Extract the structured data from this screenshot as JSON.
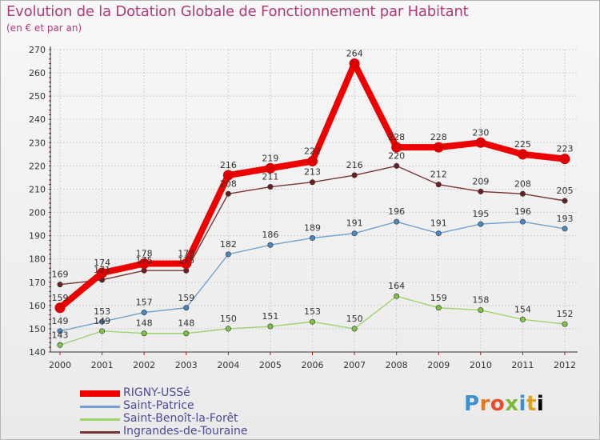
{
  "header": {
    "title": "Evolution de la Dotation Globale de Fonctionnement par Habitant",
    "subtitle": "(en € et par an)"
  },
  "logo": {
    "text": "Proxiti"
  },
  "colors": {
    "grid": "#cfcfcf",
    "axis": "#333333",
    "tick_marks": "#d01010",
    "label_text": "#333333",
    "title_text": "#b03a7a",
    "legend_text": "#4a4aa0"
  },
  "chart_data": {
    "type": "line",
    "title": "Evolution de la Dotation Globale de Fonctionnement par Habitant",
    "subtitle": "(en € et par an)",
    "xlabel": "",
    "ylabel": "",
    "ylim": [
      140,
      270
    ],
    "yticks": [
      140,
      150,
      160,
      170,
      180,
      190,
      200,
      210,
      220,
      230,
      240,
      250,
      260,
      270
    ],
    "grid": true,
    "legend_position": "bottom-left",
    "categories": [
      "2000",
      "2001",
      "2002",
      "2003",
      "2004",
      "2005",
      "2006",
      "2007",
      "2008",
      "2009",
      "2010",
      "2011",
      "2012"
    ],
    "series": [
      {
        "name": "RIGNY-USSé",
        "color": "#ee0000",
        "marker_color": "#dd0000",
        "emphasis": true,
        "values": [
          159,
          174,
          178,
          178,
          216,
          219,
          222,
          264,
          228,
          228,
          230,
          225,
          223
        ]
      },
      {
        "name": "Saint-Patrice",
        "color": "#6fa0cf",
        "marker_color": "#4a86c2",
        "emphasis": false,
        "values": [
          149,
          153,
          157,
          159,
          182,
          186,
          189,
          191,
          196,
          191,
          195,
          196,
          193
        ]
      },
      {
        "name": "Saint-Benoît-la-Forêt",
        "color": "#9ed36a",
        "marker_color": "#7cc444",
        "emphasis": false,
        "values": [
          143,
          149,
          148,
          148,
          150,
          151,
          153,
          150,
          164,
          159,
          158,
          154,
          152
        ]
      },
      {
        "name": "Ingrandes-de-Touraine",
        "color": "#7a3535",
        "marker_color": "#6b2020",
        "emphasis": false,
        "values": [
          169,
          171,
          175,
          175,
          208,
          211,
          213,
          216,
          220,
          212,
          209,
          208,
          205
        ]
      }
    ]
  }
}
